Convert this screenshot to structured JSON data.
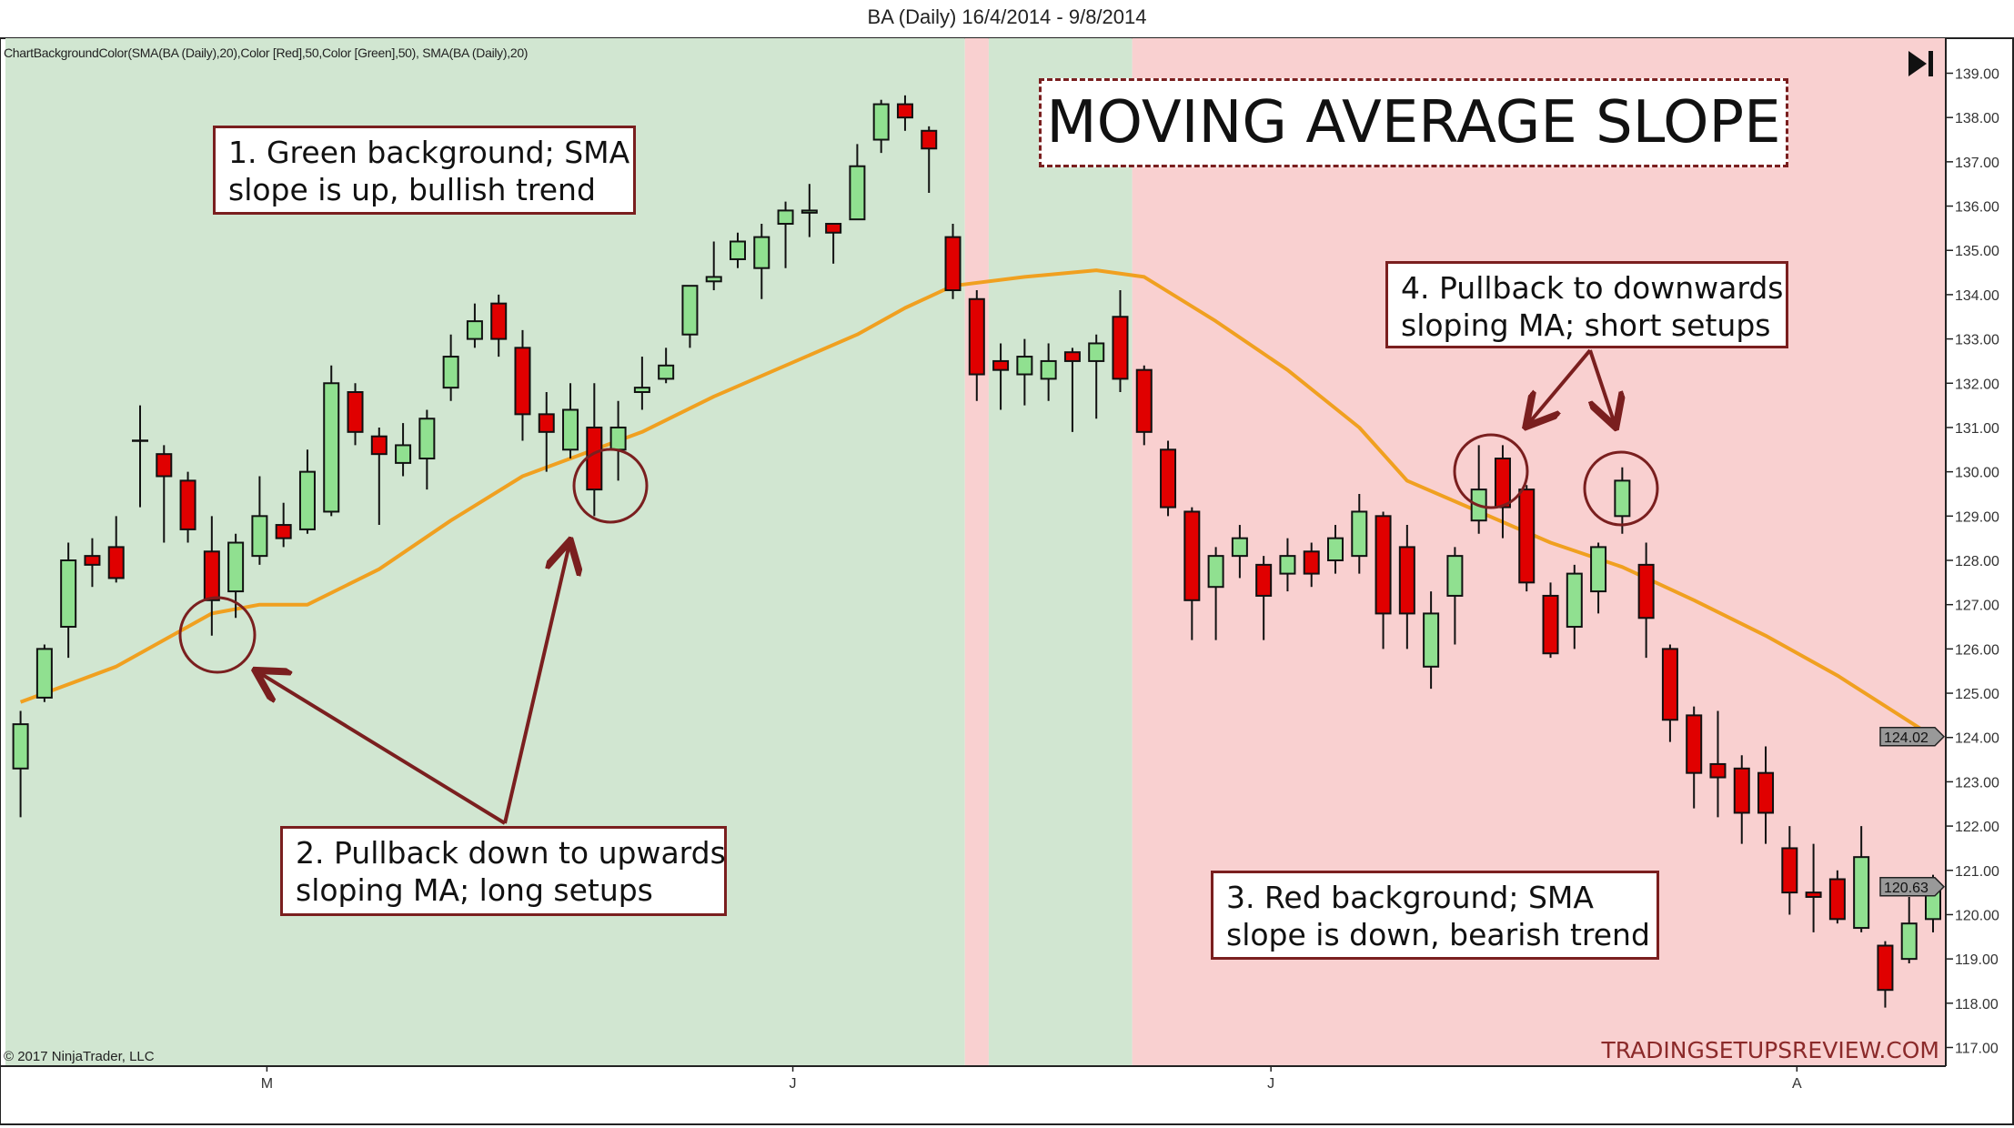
{
  "header": {
    "title": "BA (Daily)  16/4/2014 - 9/8/2014"
  },
  "indicator_label": "ChartBackgroundColor(SMA(BA (Daily),20),Color [Red],50,Color [Green],50), SMA(BA (Daily),20)",
  "copyright": "© 2017 NinjaTrader, LLC",
  "watermark": "TRADINGSETUPSREVIEW.COM",
  "headline": "MOVING AVERAGE SLOPE",
  "annotations": [
    {
      "lines": [
        "1. Green background; SMA",
        "slope is up, bullish trend"
      ]
    },
    {
      "lines": [
        "2. Pullback down to upwards",
        "sloping MA; long setups"
      ]
    },
    {
      "lines": [
        "3. Red background; SMA",
        "slope is down, bearish trend"
      ]
    },
    {
      "lines": [
        "4. Pullback to downwards",
        "sloping MA; short setups"
      ]
    }
  ],
  "colors": {
    "up_candle": "#90e090",
    "down_candle": "#e00000",
    "sma": "#f0a020",
    "bg_up": "#d1e6d1",
    "bg_down": "#f9d0d0",
    "annotation": "#7a1f1f"
  },
  "icons": {
    "scroll_end": "skip-to-end-icon"
  },
  "chart_data": {
    "type": "candlestick",
    "title": "BA (Daily)  16/4/2014 - 9/8/2014",
    "ylim": [
      117,
      139
    ],
    "y_ticks": [
      "139.00",
      "138.00",
      "137.00",
      "136.00",
      "135.00",
      "134.00",
      "133.00",
      "132.00",
      "131.00",
      "130.00",
      "129.00",
      "128.00",
      "127.00",
      "126.00",
      "125.00",
      "124.00",
      "123.00",
      "122.00",
      "121.00",
      "120.00",
      "119.00",
      "118.00",
      "117.00"
    ],
    "x_ticks": [
      {
        "label": "M",
        "bar": 10
      },
      {
        "label": "J",
        "bar": 32
      },
      {
        "label": "J",
        "bar": 52
      },
      {
        "label": "A",
        "bar": 74
      }
    ],
    "price_tags": [
      {
        "label": "124.02",
        "value": 124.02,
        "series": "sma"
      },
      {
        "label": "120.63",
        "value": 120.63,
        "series": "close"
      }
    ],
    "grid": false,
    "candles_ohlc": [
      [
        123.3,
        124.6,
        122.2,
        124.3
      ],
      [
        124.9,
        126.1,
        124.8,
        126.0
      ],
      [
        126.5,
        128.4,
        125.8,
        128.0
      ],
      [
        128.1,
        128.5,
        127.4,
        127.9
      ],
      [
        128.3,
        129.0,
        127.5,
        127.6
      ],
      [
        130.7,
        131.5,
        129.2,
        130.7
      ],
      [
        130.4,
        130.6,
        128.4,
        129.9
      ],
      [
        129.8,
        130.0,
        128.4,
        128.7
      ],
      [
        128.2,
        129.0,
        126.3,
        127.1
      ],
      [
        127.3,
        128.6,
        126.7,
        128.4
      ],
      [
        128.1,
        129.9,
        127.9,
        129.0
      ],
      [
        128.8,
        129.3,
        128.3,
        128.5
      ],
      [
        128.7,
        130.5,
        128.6,
        130.0
      ],
      [
        129.1,
        132.4,
        129.0,
        132.0
      ],
      [
        131.8,
        132.0,
        130.6,
        130.9
      ],
      [
        130.8,
        131.0,
        128.8,
        130.4
      ],
      [
        130.2,
        131.1,
        129.9,
        130.6
      ],
      [
        130.3,
        131.4,
        129.6,
        131.2
      ],
      [
        131.9,
        133.1,
        131.6,
        132.6
      ],
      [
        133.0,
        133.8,
        132.8,
        133.4
      ],
      [
        133.8,
        134.0,
        132.6,
        133.0
      ],
      [
        132.8,
        133.2,
        130.7,
        131.3
      ],
      [
        131.3,
        131.8,
        130.0,
        130.9
      ],
      [
        130.5,
        132.0,
        130.3,
        131.4
      ],
      [
        131.0,
        132.0,
        129.0,
        129.6
      ],
      [
        130.5,
        131.6,
        129.8,
        131.0
      ],
      [
        131.8,
        132.6,
        131.4,
        131.9
      ],
      [
        132.1,
        132.8,
        132.0,
        132.4
      ],
      [
        133.1,
        134.2,
        132.8,
        134.2
      ],
      [
        134.3,
        135.2,
        134.1,
        134.4
      ],
      [
        134.8,
        135.4,
        134.6,
        135.2
      ],
      [
        134.6,
        135.6,
        133.9,
        135.3
      ],
      [
        135.6,
        136.1,
        134.6,
        135.9
      ],
      [
        135.85,
        136.5,
        135.3,
        135.9
      ],
      [
        135.6,
        135.6,
        134.7,
        135.4
      ],
      [
        135.7,
        137.4,
        135.7,
        136.9
      ],
      [
        137.5,
        138.4,
        137.2,
        138.3
      ],
      [
        138.3,
        138.5,
        137.7,
        138.0
      ],
      [
        137.7,
        137.8,
        136.3,
        137.3
      ],
      [
        135.3,
        135.6,
        133.9,
        134.1
      ],
      [
        133.9,
        134.1,
        131.6,
        132.2
      ],
      [
        132.5,
        132.9,
        131.4,
        132.3
      ],
      [
        132.2,
        133.0,
        131.5,
        132.6
      ],
      [
        132.1,
        132.9,
        131.6,
        132.5
      ],
      [
        132.7,
        132.8,
        130.9,
        132.5
      ],
      [
        132.5,
        133.1,
        131.2,
        132.9
      ],
      [
        133.5,
        134.1,
        131.8,
        132.1
      ],
      [
        132.3,
        132.4,
        130.6,
        130.9
      ],
      [
        130.5,
        130.7,
        129.0,
        129.2
      ],
      [
        129.1,
        129.2,
        126.2,
        127.1
      ],
      [
        127.4,
        128.3,
        126.2,
        128.1
      ],
      [
        128.1,
        128.8,
        127.6,
        128.5
      ],
      [
        127.9,
        128.1,
        126.2,
        127.2
      ],
      [
        127.7,
        128.5,
        127.3,
        128.1
      ],
      [
        128.2,
        128.4,
        127.4,
        127.7
      ],
      [
        128.0,
        128.8,
        127.7,
        128.5
      ],
      [
        128.1,
        129.5,
        127.7,
        129.1
      ],
      [
        129.0,
        129.1,
        126.0,
        126.8
      ],
      [
        128.3,
        128.8,
        126.0,
        126.8
      ],
      [
        125.6,
        127.3,
        125.1,
        126.8
      ],
      [
        127.2,
        128.3,
        126.1,
        128.1
      ],
      [
        128.9,
        130.6,
        128.6,
        129.6
      ],
      [
        130.3,
        130.6,
        128.5,
        129.2
      ],
      [
        129.6,
        129.7,
        127.3,
        127.5
      ],
      [
        127.2,
        127.5,
        125.8,
        125.9
      ],
      [
        126.5,
        127.9,
        126.0,
        127.7
      ],
      [
        127.3,
        128.4,
        126.8,
        128.3
      ],
      [
        129.0,
        130.1,
        128.6,
        129.8
      ],
      [
        127.9,
        128.4,
        125.8,
        126.7
      ],
      [
        126.0,
        126.1,
        123.9,
        124.4
      ],
      [
        124.5,
        124.7,
        122.4,
        123.2
      ],
      [
        123.4,
        124.6,
        122.2,
        123.1
      ],
      [
        123.3,
        123.6,
        121.6,
        122.3
      ],
      [
        123.2,
        123.8,
        121.6,
        122.3
      ],
      [
        121.5,
        122.0,
        120.0,
        120.5
      ],
      [
        120.5,
        121.6,
        119.6,
        120.4
      ],
      [
        120.8,
        121.0,
        119.8,
        119.9
      ],
      [
        119.7,
        122.0,
        119.6,
        121.3
      ],
      [
        119.3,
        119.4,
        117.9,
        118.3
      ],
      [
        119.0,
        120.4,
        118.9,
        119.8
      ],
      [
        119.9,
        120.9,
        119.6,
        120.63
      ]
    ],
    "sma_20": [
      [
        0,
        124.8
      ],
      [
        4,
        125.6
      ],
      [
        8,
        126.8
      ],
      [
        10,
        127.0
      ],
      [
        12,
        127.0
      ],
      [
        15,
        127.8
      ],
      [
        18,
        128.9
      ],
      [
        21,
        129.9
      ],
      [
        24,
        130.5
      ],
      [
        26,
        130.9
      ],
      [
        29,
        131.7
      ],
      [
        32,
        132.4
      ],
      [
        35,
        133.1
      ],
      [
        37,
        133.7
      ],
      [
        39,
        134.2
      ],
      [
        42,
        134.4
      ],
      [
        45,
        134.55
      ],
      [
        47,
        134.4
      ],
      [
        50,
        133.4
      ],
      [
        53,
        132.3
      ],
      [
        56,
        131.0
      ],
      [
        58,
        129.8
      ],
      [
        61,
        129.1
      ],
      [
        64,
        128.4
      ],
      [
        67,
        127.85
      ],
      [
        70,
        127.1
      ],
      [
        73,
        126.3
      ],
      [
        76,
        125.4
      ],
      [
        80,
        124.02
      ]
    ],
    "background_regions": [
      {
        "from": 0,
        "to": 39,
        "trend": "up"
      },
      {
        "from": 40,
        "to": 40,
        "trend": "down"
      },
      {
        "from": 41,
        "to": 46,
        "trend": "up"
      },
      {
        "from": 47,
        "to": 80,
        "trend": "down"
      }
    ]
  }
}
